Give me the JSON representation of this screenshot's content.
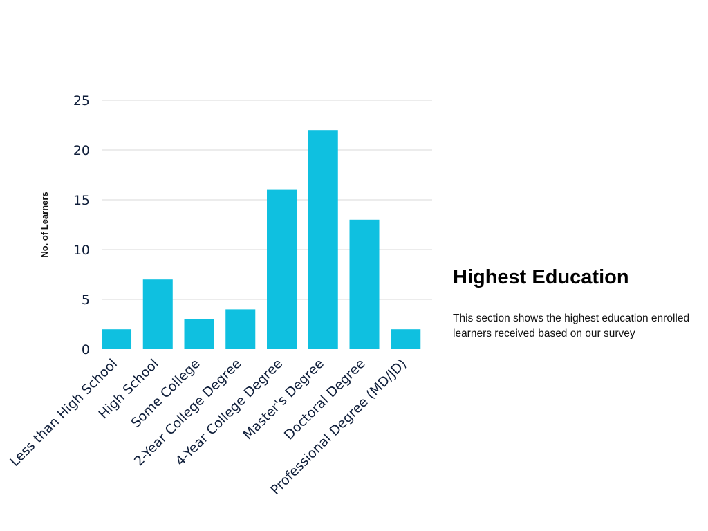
{
  "panel": {
    "title": "Highest Education",
    "description": "This section shows the highest education enrolled learners received based on our survey"
  },
  "chart_data": {
    "type": "bar",
    "title": "",
    "xlabel": "",
    "ylabel": "No. of Learners",
    "categories": [
      "Less than High School",
      "High School",
      "Some College",
      "2-Year College Degree",
      "4-Year College Degree",
      "Master's Degree",
      "Doctoral Degree",
      "Professional Degree (MD/JD)"
    ],
    "values": [
      2,
      7,
      3,
      4,
      16,
      22,
      13,
      2
    ],
    "ylim": [
      0,
      25
    ],
    "yticks": [
      0,
      5,
      10,
      15,
      20,
      25
    ],
    "grid": true,
    "legend": "none",
    "colors": {
      "bar": "#0fc0e0"
    }
  }
}
